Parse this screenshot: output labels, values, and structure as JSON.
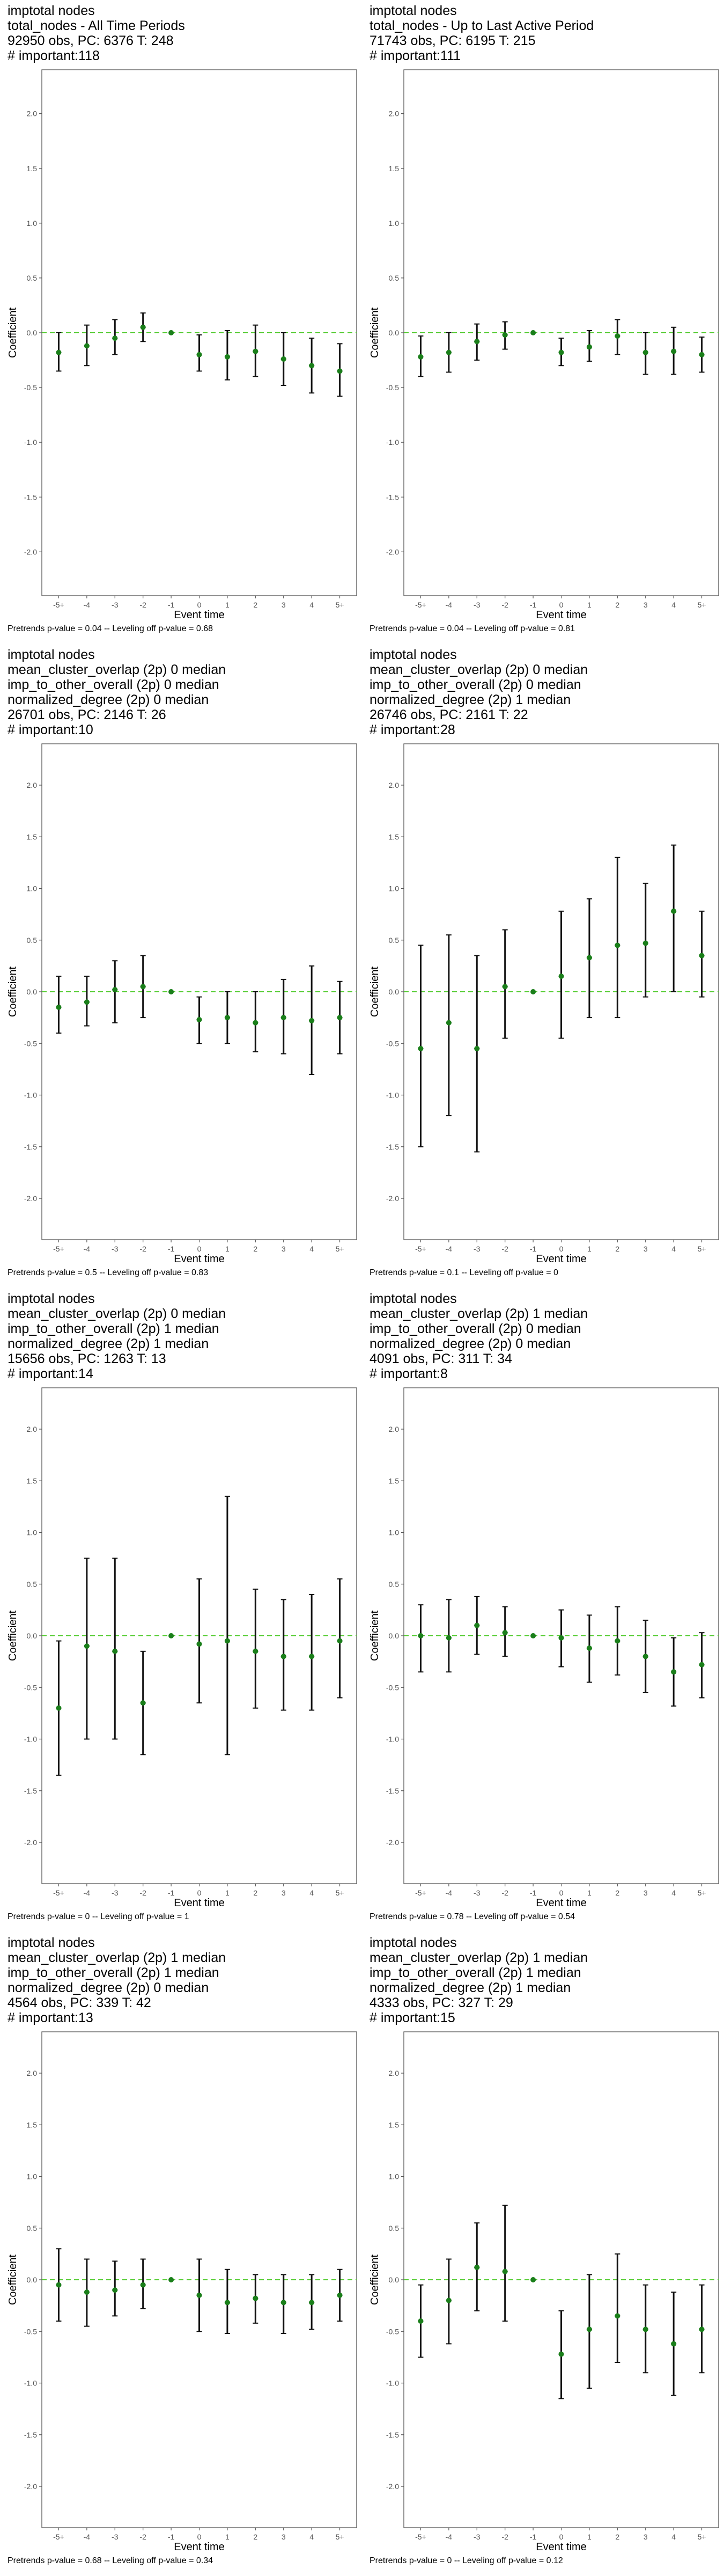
{
  "layout_note_free": true,
  "styles": {
    "point_color": "#1a7f1a",
    "ci_color": "#111111",
    "zero_line_color": "#55cc33",
    "panel_border": "#555555",
    "tick_color": "#555555"
  },
  "chart_data": [
    {
      "type": "scatter",
      "title_lines": [
        "imptotal nodes",
        "total_nodes - All Time Periods",
        "92950 obs, PC: 6376 T: 248",
        "# important:118"
      ],
      "footnote": "Pretrends p-value = 0.04 -- Leveling off p-value = 0.68",
      "xlabel": "Event time",
      "ylabel": "Coefficient",
      "categories": [
        "-5+",
        "-4",
        "-3",
        "-2",
        "-1",
        "0",
        "1",
        "2",
        "3",
        "4",
        "5+"
      ],
      "ylim": [
        -2.4,
        2.4
      ],
      "yticks": [
        -2.0,
        -1.5,
        -1.0,
        -0.5,
        0.0,
        0.5,
        1.0,
        1.5,
        2.0
      ],
      "series": [
        {
          "values": [
            -0.18,
            -0.12,
            -0.05,
            0.05,
            0.0,
            -0.2,
            -0.22,
            -0.17,
            -0.24,
            -0.3,
            -0.35
          ],
          "ci_low": [
            -0.35,
            -0.3,
            -0.2,
            -0.08,
            0.0,
            -0.35,
            -0.43,
            -0.4,
            -0.48,
            -0.55,
            -0.58
          ],
          "ci_high": [
            0.0,
            0.07,
            0.12,
            0.18,
            0.0,
            -0.02,
            0.02,
            0.07,
            0.0,
            -0.05,
            -0.1
          ]
        }
      ]
    },
    {
      "type": "scatter",
      "title_lines": [
        "imptotal nodes",
        "total_nodes - Up to Last Active Period",
        "71743 obs, PC: 6195 T: 215",
        "# important:111"
      ],
      "footnote": "Pretrends p-value = 0.04 -- Leveling off p-value = 0.81",
      "xlabel": "Event time",
      "ylabel": "Coefficient",
      "categories": [
        "-5+",
        "-4",
        "-3",
        "-2",
        "-1",
        "0",
        "1",
        "2",
        "3",
        "4",
        "5+"
      ],
      "ylim": [
        -2.4,
        2.4
      ],
      "yticks": [
        -2.0,
        -1.5,
        -1.0,
        -0.5,
        0.0,
        0.5,
        1.0,
        1.5,
        2.0
      ],
      "series": [
        {
          "values": [
            -0.22,
            -0.18,
            -0.08,
            -0.02,
            0.0,
            -0.18,
            -0.13,
            -0.03,
            -0.18,
            -0.17,
            -0.2
          ],
          "ci_low": [
            -0.4,
            -0.36,
            -0.25,
            -0.15,
            0.0,
            -0.3,
            -0.26,
            -0.2,
            -0.38,
            -0.38,
            -0.36
          ],
          "ci_high": [
            -0.03,
            0.0,
            0.08,
            0.1,
            0.0,
            -0.05,
            0.02,
            0.12,
            0.0,
            0.05,
            -0.04
          ]
        }
      ]
    },
    {
      "type": "scatter",
      "title_lines": [
        "imptotal nodes",
        "mean_cluster_overlap (2p) 0 median",
        "imp_to_other_overall (2p) 0 median",
        "normalized_degree (2p) 0 median",
        "26701 obs, PC: 2146 T: 26",
        "# important:10"
      ],
      "footnote": "Pretrends p-value = 0.5 -- Leveling off p-value = 0.83",
      "xlabel": "Event time",
      "ylabel": "Coefficient",
      "categories": [
        "-5+",
        "-4",
        "-3",
        "-2",
        "-1",
        "0",
        "1",
        "2",
        "3",
        "4",
        "5+"
      ],
      "ylim": [
        -2.4,
        2.4
      ],
      "yticks": [
        -2.0,
        -1.5,
        -1.0,
        -0.5,
        0.0,
        0.5,
        1.0,
        1.5,
        2.0
      ],
      "series": [
        {
          "values": [
            -0.15,
            -0.1,
            0.02,
            0.05,
            0.0,
            -0.27,
            -0.25,
            -0.3,
            -0.25,
            -0.28,
            -0.25
          ],
          "ci_low": [
            -0.4,
            -0.33,
            -0.3,
            -0.25,
            0.0,
            -0.5,
            -0.5,
            -0.58,
            -0.6,
            -0.8,
            -0.6
          ],
          "ci_high": [
            0.15,
            0.15,
            0.3,
            0.35,
            0.0,
            -0.05,
            0.0,
            0.0,
            0.12,
            0.25,
            0.1
          ]
        }
      ]
    },
    {
      "type": "scatter",
      "title_lines": [
        "imptotal nodes",
        "mean_cluster_overlap (2p) 0 median",
        "imp_to_other_overall (2p) 0 median",
        "normalized_degree (2p) 1 median",
        "26746 obs, PC: 2161 T: 22",
        "# important:28"
      ],
      "footnote": "Pretrends p-value = 0.1 -- Leveling off p-value = 0",
      "xlabel": "Event time",
      "ylabel": "Coefficient",
      "categories": [
        "-5+",
        "-4",
        "-3",
        "-2",
        "-1",
        "0",
        "1",
        "2",
        "3",
        "4",
        "5+"
      ],
      "ylim": [
        -2.4,
        2.4
      ],
      "yticks": [
        -2.0,
        -1.5,
        -1.0,
        -0.5,
        0.0,
        0.5,
        1.0,
        1.5,
        2.0
      ],
      "series": [
        {
          "values": [
            -0.55,
            -0.3,
            -0.55,
            0.05,
            0.0,
            0.15,
            0.33,
            0.45,
            0.47,
            0.78,
            0.35
          ],
          "ci_low": [
            -1.5,
            -1.2,
            -1.55,
            -0.45,
            0.0,
            -0.45,
            -0.25,
            -0.25,
            -0.05,
            0.0,
            -0.05
          ],
          "ci_high": [
            0.45,
            0.55,
            0.35,
            0.6,
            0.0,
            0.78,
            0.9,
            1.3,
            1.05,
            1.42,
            0.78
          ]
        }
      ]
    },
    {
      "type": "scatter",
      "title_lines": [
        "imptotal nodes",
        "mean_cluster_overlap (2p) 0 median",
        "imp_to_other_overall (2p) 1 median",
        "normalized_degree (2p) 1 median",
        "15656 obs, PC: 1263 T: 13",
        "# important:14"
      ],
      "footnote": "Pretrends p-value = 0 -- Leveling off p-value = 1",
      "xlabel": "Event time",
      "ylabel": "Coefficient",
      "categories": [
        "-5+",
        "-4",
        "-3",
        "-2",
        "-1",
        "0",
        "1",
        "2",
        "3",
        "4",
        "5+"
      ],
      "ylim": [
        -2.4,
        2.4
      ],
      "yticks": [
        -2.0,
        -1.5,
        -1.0,
        -0.5,
        0.0,
        0.5,
        1.0,
        1.5,
        2.0
      ],
      "series": [
        {
          "values": [
            -0.7,
            -0.1,
            -0.15,
            -0.65,
            0.0,
            -0.08,
            -0.05,
            -0.15,
            -0.2,
            -0.2,
            -0.05
          ],
          "ci_low": [
            -1.35,
            -1.0,
            -1.0,
            -1.15,
            0.0,
            -0.65,
            -1.15,
            -0.7,
            -0.72,
            -0.72,
            -0.6
          ],
          "ci_high": [
            -0.05,
            0.75,
            0.75,
            -0.15,
            0.0,
            0.55,
            1.35,
            0.45,
            0.35,
            0.4,
            0.55
          ]
        }
      ]
    },
    {
      "type": "scatter",
      "title_lines": [
        "imptotal nodes",
        "mean_cluster_overlap (2p) 1 median",
        "imp_to_other_overall (2p) 0 median",
        "normalized_degree (2p) 0 median",
        "4091 obs, PC: 311 T: 34",
        "# important:8"
      ],
      "footnote": "Pretrends p-value = 0.78 -- Leveling off p-value = 0.54",
      "xlabel": "Event time",
      "ylabel": "Coefficient",
      "categories": [
        "-5+",
        "-4",
        "-3",
        "-2",
        "-1",
        "0",
        "1",
        "2",
        "3",
        "4",
        "5+"
      ],
      "ylim": [
        -2.4,
        2.4
      ],
      "yticks": [
        -2.0,
        -1.5,
        -1.0,
        -0.5,
        0.0,
        0.5,
        1.0,
        1.5,
        2.0
      ],
      "series": [
        {
          "values": [
            0.0,
            -0.02,
            0.1,
            0.03,
            0.0,
            -0.02,
            -0.12,
            -0.05,
            -0.2,
            -0.35,
            -0.28
          ],
          "ci_low": [
            -0.35,
            -0.35,
            -0.18,
            -0.2,
            0.0,
            -0.3,
            -0.45,
            -0.38,
            -0.55,
            -0.68,
            -0.6
          ],
          "ci_high": [
            0.3,
            0.35,
            0.38,
            0.28,
            0.0,
            0.25,
            0.2,
            0.28,
            0.15,
            -0.02,
            0.03
          ]
        }
      ]
    },
    {
      "type": "scatter",
      "title_lines": [
        "imptotal nodes",
        "mean_cluster_overlap (2p) 1 median",
        "imp_to_other_overall (2p) 1 median",
        "normalized_degree (2p) 0 median",
        "4564 obs, PC: 339 T: 42",
        "# important:13"
      ],
      "footnote": "Pretrends p-value = 0.68 -- Leveling off p-value = 0.34",
      "xlabel": "Event time",
      "ylabel": "Coefficient",
      "categories": [
        "-5+",
        "-4",
        "-3",
        "-2",
        "-1",
        "0",
        "1",
        "2",
        "3",
        "4",
        "5+"
      ],
      "ylim": [
        -2.4,
        2.4
      ],
      "yticks": [
        -2.0,
        -1.5,
        -1.0,
        -0.5,
        0.0,
        0.5,
        1.0,
        1.5,
        2.0
      ],
      "series": [
        {
          "values": [
            -0.05,
            -0.12,
            -0.1,
            -0.05,
            0.0,
            -0.15,
            -0.22,
            -0.18,
            -0.22,
            -0.22,
            -0.15
          ],
          "ci_low": [
            -0.4,
            -0.45,
            -0.35,
            -0.28,
            0.0,
            -0.5,
            -0.52,
            -0.42,
            -0.52,
            -0.48,
            -0.4
          ],
          "ci_high": [
            0.3,
            0.2,
            0.18,
            0.2,
            0.0,
            0.2,
            0.1,
            0.05,
            0.05,
            0.05,
            0.1
          ]
        }
      ]
    },
    {
      "type": "scatter",
      "title_lines": [
        "imptotal nodes",
        "mean_cluster_overlap (2p) 1 median",
        "imp_to_other_overall (2p) 1 median",
        "normalized_degree (2p) 1 median",
        "4333 obs, PC: 327 T: 29",
        "# important:15"
      ],
      "footnote": "Pretrends p-value = 0 -- Leveling off p-value = 0.12",
      "xlabel": "Event time",
      "ylabel": "Coefficient",
      "categories": [
        "-5+",
        "-4",
        "-3",
        "-2",
        "-1",
        "0",
        "1",
        "2",
        "3",
        "4",
        "5+"
      ],
      "ylim": [
        -2.4,
        2.4
      ],
      "yticks": [
        -2.0,
        -1.5,
        -1.0,
        -0.5,
        0.0,
        0.5,
        1.0,
        1.5,
        2.0
      ],
      "series": [
        {
          "values": [
            -0.4,
            -0.2,
            0.12,
            0.08,
            0.0,
            -0.72,
            -0.48,
            -0.35,
            -0.48,
            -0.62,
            -0.48
          ],
          "ci_low": [
            -0.75,
            -0.62,
            -0.3,
            -0.4,
            0.0,
            -1.15,
            -1.05,
            -0.8,
            -0.9,
            -1.12,
            -0.9
          ],
          "ci_high": [
            -0.05,
            0.2,
            0.55,
            0.72,
            0.0,
            -0.3,
            0.05,
            0.25,
            -0.05,
            -0.12,
            -0.05
          ]
        }
      ]
    }
  ]
}
